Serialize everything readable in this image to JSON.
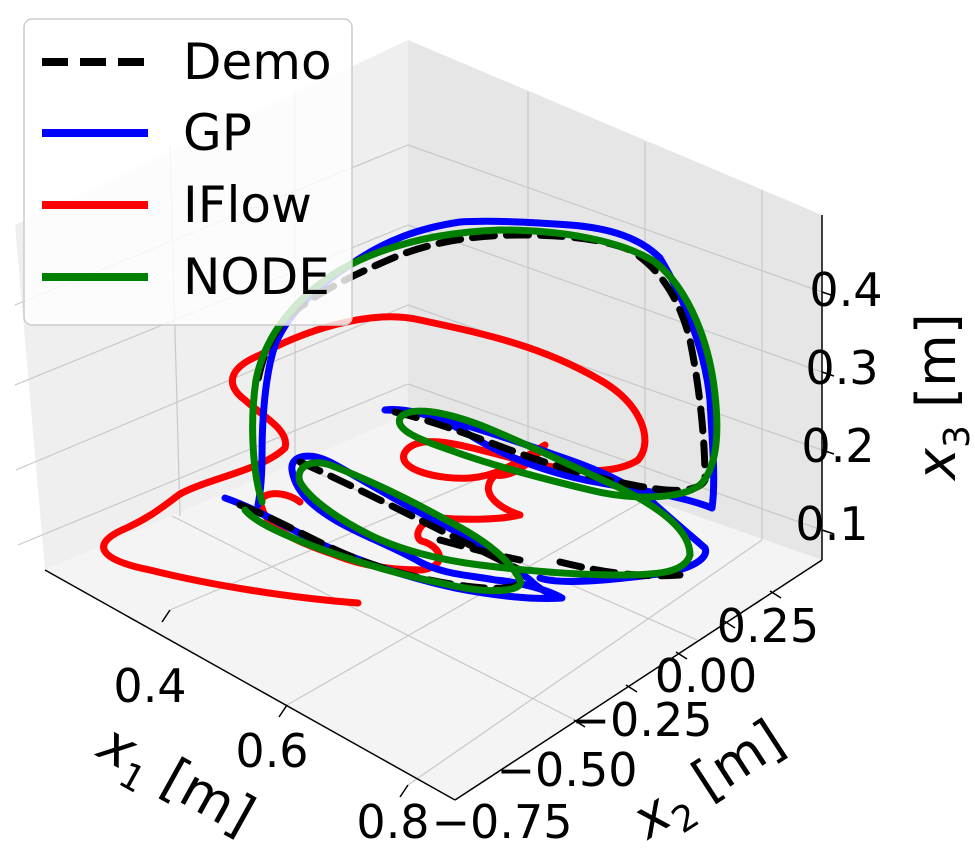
{
  "chart_data": {
    "type": "line",
    "dimensions": 3,
    "xlabel": "x",
    "xlabel_sub": "1",
    "xlabel_unit": " [m]",
    "ylabel": "x",
    "ylabel_sub": "2",
    "ylabel_unit": " [m]",
    "zlabel": "x",
    "zlabel_sub": "3",
    "zlabel_unit": " [m]",
    "x_ticks": [
      "0.4",
      "0.6",
      "0.8"
    ],
    "y_ticks": [
      "−0.75",
      "−0.50",
      "−0.25",
      "0.00",
      "0.25"
    ],
    "z_ticks": [
      "0.1",
      "0.2",
      "0.3",
      "0.4"
    ],
    "grid": true,
    "legend_position": "top-left",
    "legend": [
      {
        "name": "Demo",
        "color": "#000000",
        "style": "dashed"
      },
      {
        "name": "GP",
        "color": "#0000ff",
        "style": "solid"
      },
      {
        "name": "IFlow",
        "color": "#ff0000",
        "style": "solid"
      },
      {
        "name": "NODE",
        "color": "#008000",
        "style": "solid"
      }
    ]
  }
}
